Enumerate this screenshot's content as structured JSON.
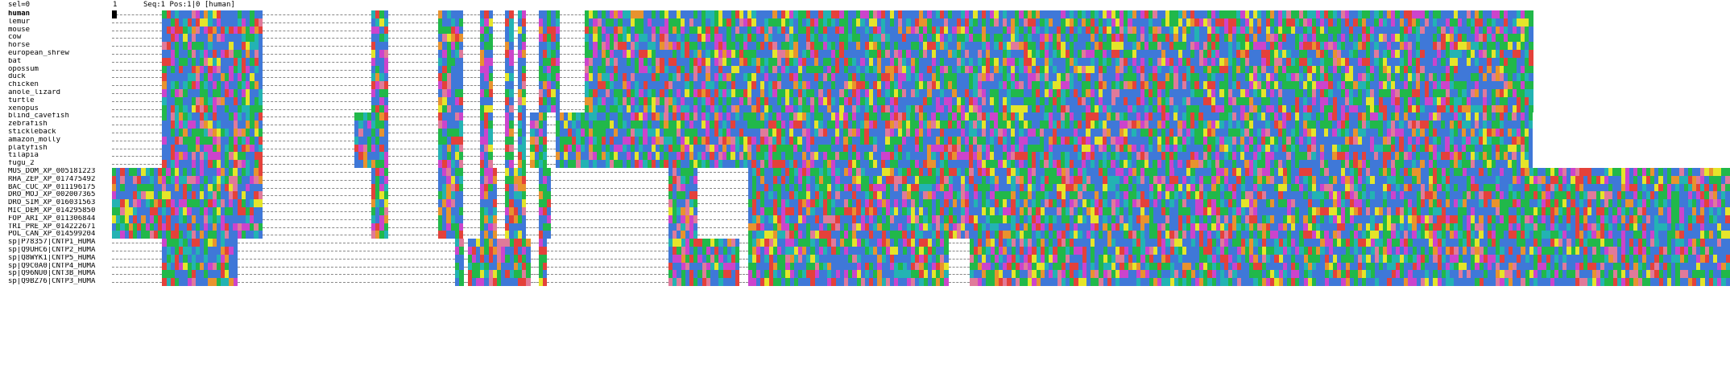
{
  "status": {
    "sel": "sel=0",
    "one": "1",
    "pos": "Seq:1 Pos:1|0 [human]"
  },
  "colors": {
    "blue": "#3f78d8",
    "red": "#e4413a",
    "green": "#21b84a",
    "magenta": "#cc44cc",
    "orange": "#e8932e",
    "cyan": "#23b3b3",
    "yellow": "#e5e52a",
    "pink": "#e07a9a",
    "gap": "#ffffff"
  },
  "sequences": [
    {
      "name": "human",
      "active": true
    },
    {
      "name": "lemur"
    },
    {
      "name": "mouse"
    },
    {
      "name": "cow"
    },
    {
      "name": "horse"
    },
    {
      "name": "european_shrew"
    },
    {
      "name": "bat"
    },
    {
      "name": "opossum"
    },
    {
      "name": "duck"
    },
    {
      "name": "chicken"
    },
    {
      "name": "anole_lizard"
    },
    {
      "name": "turtle"
    },
    {
      "name": "xenopus"
    },
    {
      "name": "blind_cavefish"
    },
    {
      "name": "zebrafish"
    },
    {
      "name": "stickleback"
    },
    {
      "name": "amazon_molly"
    },
    {
      "name": "platyfish"
    },
    {
      "name": "tilapia"
    },
    {
      "name": "fugu_2"
    },
    {
      "name": "MUS_DOM_XP_005181223"
    },
    {
      "name": "RHA_ZEP_XP_017475492"
    },
    {
      "name": "BAC_CUC_XP_011196175"
    },
    {
      "name": "DRO_MOJ_XP_002007365"
    },
    {
      "name": "DRO_SIM_XP_016031563"
    },
    {
      "name": "MIC_DEM_XP_014295850"
    },
    {
      "name": "FOP_ARI_XP_011306844"
    },
    {
      "name": "TRI_PRE_XP_014222671"
    },
    {
      "name": "POL_CAN_XP_014599204"
    },
    {
      "name": "sp|P78357|CNTP1_HUMA"
    },
    {
      "name": "sp|Q9UHC6|CNTP2_HUMA"
    },
    {
      "name": "sp|Q8WYK1|CNTP5_HUMA"
    },
    {
      "name": "sp|Q9C0A0|CNTP4_HUMA"
    },
    {
      "name": "sp|Q96NU0|CNT3B_HUMA"
    },
    {
      "name": "sp|Q9BZ76|CNTP3_HUMA"
    }
  ]
}
